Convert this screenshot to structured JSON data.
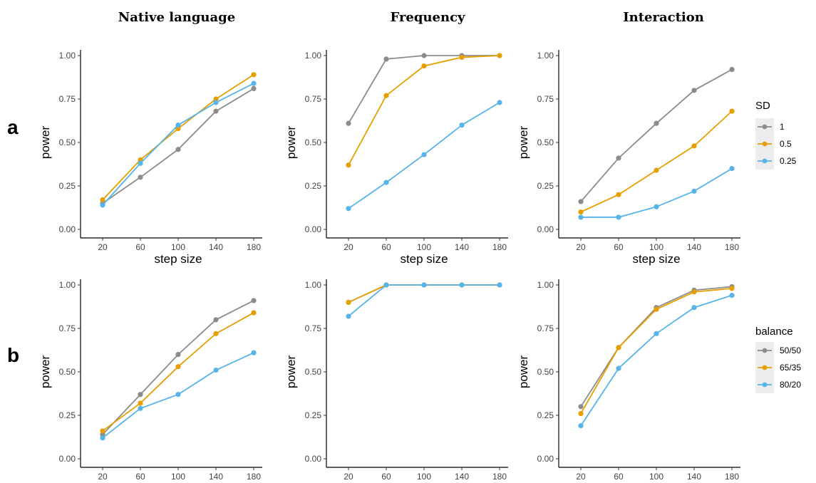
{
  "column_titles": [
    "Native language",
    "Frequency",
    "Interaction"
  ],
  "row_labels": [
    "a",
    "b"
  ],
  "legends": [
    {
      "title": "SD",
      "labels": [
        "1",
        "0.5",
        "0.25"
      ],
      "colors": [
        "#8c8c8c",
        "#e69f00",
        "#56b4e9"
      ]
    },
    {
      "title": "balance",
      "labels": [
        "50/50",
        "65/35",
        "80/20"
      ],
      "colors": [
        "#8c8c8c",
        "#e69f00",
        "#56b4e9"
      ]
    }
  ],
  "chart_data": [
    {
      "type": "line",
      "title": "Native language",
      "row": "a",
      "x": [
        20,
        60,
        100,
        140,
        180
      ],
      "xlabel": "step size",
      "ylabel": "power",
      "xticks": [
        "20",
        "60",
        "100",
        "140",
        "180"
      ],
      "yticks": [
        "0.00",
        "0.25",
        "0.50",
        "0.75",
        "1.00"
      ],
      "ylim": [
        0,
        1
      ],
      "series": [
        {
          "name": "1",
          "color": "#8c8c8c",
          "values": [
            0.15,
            0.3,
            0.46,
            0.68,
            0.81
          ]
        },
        {
          "name": "0.5",
          "color": "#e69f00",
          "values": [
            0.17,
            0.4,
            0.58,
            0.75,
            0.89
          ]
        },
        {
          "name": "0.25",
          "color": "#56b4e9",
          "values": [
            0.14,
            0.38,
            0.6,
            0.73,
            0.84
          ]
        }
      ]
    },
    {
      "type": "line",
      "title": "Frequency",
      "row": "a",
      "x": [
        20,
        60,
        100,
        140,
        180
      ],
      "xlabel": "step size",
      "ylabel": "power",
      "xticks": [
        "20",
        "60",
        "100",
        "140",
        "180"
      ],
      "yticks": [
        "0.00",
        "0.25",
        "0.50",
        "0.75",
        "1.00"
      ],
      "ylim": [
        0,
        1
      ],
      "series": [
        {
          "name": "1",
          "color": "#8c8c8c",
          "values": [
            0.61,
            0.98,
            1.0,
            1.0,
            1.0
          ]
        },
        {
          "name": "0.5",
          "color": "#e69f00",
          "values": [
            0.37,
            0.77,
            0.94,
            0.99,
            1.0
          ]
        },
        {
          "name": "0.25",
          "color": "#56b4e9",
          "values": [
            0.12,
            0.27,
            0.43,
            0.6,
            0.73
          ]
        }
      ]
    },
    {
      "type": "line",
      "title": "Interaction",
      "row": "a",
      "x": [
        20,
        60,
        100,
        140,
        180
      ],
      "xlabel": "step size",
      "ylabel": "power",
      "xticks": [
        "20",
        "60",
        "100",
        "140",
        "180"
      ],
      "yticks": [
        "0.00",
        "0.25",
        "0.50",
        "0.75",
        "1.00"
      ],
      "ylim": [
        0,
        1
      ],
      "series": [
        {
          "name": "1",
          "color": "#8c8c8c",
          "values": [
            0.16,
            0.41,
            0.61,
            0.8,
            0.92
          ]
        },
        {
          "name": "0.5",
          "color": "#e69f00",
          "values": [
            0.1,
            0.2,
            0.34,
            0.48,
            0.68
          ]
        },
        {
          "name": "0.25",
          "color": "#56b4e9",
          "values": [
            0.07,
            0.07,
            0.13,
            0.22,
            0.35
          ]
        }
      ]
    },
    {
      "type": "line",
      "title": "Native language",
      "row": "b",
      "x": [
        20,
        60,
        100,
        140,
        180
      ],
      "xlabel": "step size",
      "ylabel": "power",
      "xticks": [
        "20",
        "60",
        "100",
        "140",
        "180"
      ],
      "yticks": [
        "0.00",
        "0.25",
        "0.50",
        "0.75",
        "1.00"
      ],
      "ylim": [
        0,
        1
      ],
      "series": [
        {
          "name": "50/50",
          "color": "#8c8c8c",
          "values": [
            0.14,
            0.37,
            0.6,
            0.8,
            0.91
          ]
        },
        {
          "name": "65/35",
          "color": "#e69f00",
          "values": [
            0.16,
            0.32,
            0.53,
            0.72,
            0.84
          ]
        },
        {
          "name": "80/20",
          "color": "#56b4e9",
          "values": [
            0.12,
            0.29,
            0.37,
            0.51,
            0.61
          ]
        }
      ]
    },
    {
      "type": "line",
      "title": "Frequency",
      "row": "b",
      "x": [
        20,
        60,
        100,
        140,
        180
      ],
      "xlabel": "step size",
      "ylabel": "power",
      "xticks": [
        "20",
        "60",
        "100",
        "140",
        "180"
      ],
      "yticks": [
        "0.00",
        "0.25",
        "0.50",
        "0.75",
        "1.00"
      ],
      "ylim": [
        0,
        1
      ],
      "series": [
        {
          "name": "50/50",
          "color": "#8c8c8c",
          "values": [
            0.9,
            1.0,
            1.0,
            1.0,
            1.0
          ]
        },
        {
          "name": "65/35",
          "color": "#e69f00",
          "values": [
            0.9,
            1.0,
            1.0,
            1.0,
            1.0
          ]
        },
        {
          "name": "80/20",
          "color": "#56b4e9",
          "values": [
            0.82,
            1.0,
            1.0,
            1.0,
            1.0
          ]
        }
      ]
    },
    {
      "type": "line",
      "title": "Interaction",
      "row": "b",
      "x": [
        20,
        60,
        100,
        140,
        180
      ],
      "xlabel": "step size",
      "ylabel": "power",
      "xticks": [
        "20",
        "60",
        "100",
        "140",
        "180"
      ],
      "yticks": [
        "0.00",
        "0.25",
        "0.50",
        "0.75",
        "1.00"
      ],
      "ylim": [
        0,
        1
      ],
      "series": [
        {
          "name": "50/50",
          "color": "#8c8c8c",
          "values": [
            0.3,
            0.64,
            0.87,
            0.97,
            0.99
          ]
        },
        {
          "name": "65/35",
          "color": "#e69f00",
          "values": [
            0.26,
            0.64,
            0.86,
            0.96,
            0.98
          ]
        },
        {
          "name": "80/20",
          "color": "#56b4e9",
          "values": [
            0.19,
            0.52,
            0.72,
            0.87,
            0.94
          ]
        }
      ]
    }
  ]
}
